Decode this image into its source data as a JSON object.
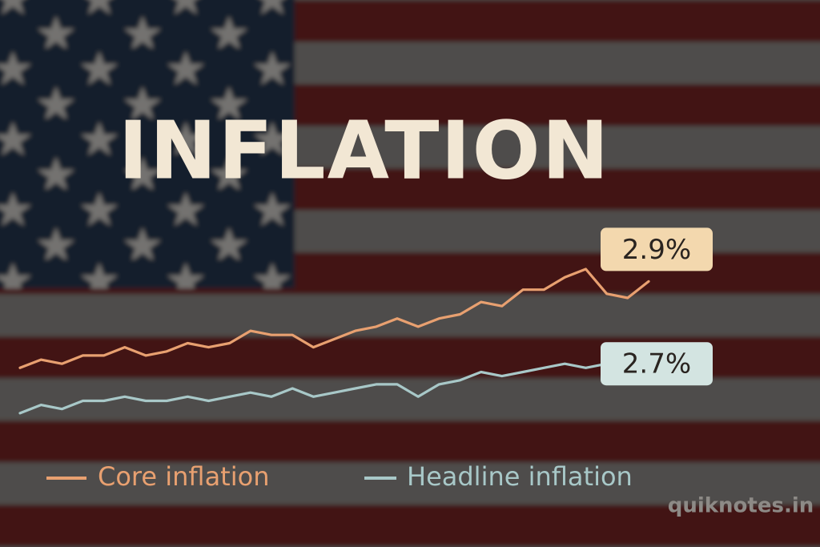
{
  "chart_data": {
    "type": "line",
    "title": "INFLATION",
    "categories": [
      null,
      null,
      null,
      null,
      null,
      null,
      null,
      null,
      null,
      null,
      null,
      null,
      null,
      null,
      null,
      null,
      null,
      null,
      null,
      null,
      null,
      null,
      null,
      null,
      null,
      null,
      null,
      null,
      null,
      null,
      null
    ],
    "ylim": [
      2.5,
      3.0
    ],
    "series": [
      {
        "name": "Core inflation",
        "color": "#e8a070",
        "values": [
          2.69,
          2.71,
          2.7,
          2.72,
          2.72,
          2.74,
          2.72,
          2.73,
          2.75,
          2.74,
          2.75,
          2.78,
          2.77,
          2.77,
          2.74,
          2.76,
          2.78,
          2.79,
          2.81,
          2.79,
          2.81,
          2.82,
          2.85,
          2.84,
          2.88,
          2.88,
          2.91,
          2.93,
          2.87,
          2.86,
          2.9
        ],
        "value_labels": [
          null,
          null,
          null,
          null,
          null,
          null,
          null,
          null,
          null,
          null,
          null,
          null,
          null,
          null,
          null,
          null,
          null,
          null,
          null,
          null,
          null,
          null,
          null,
          null,
          null,
          null,
          null,
          null,
          null,
          null,
          "2.9%"
        ]
      },
      {
        "name": "Headline inflation",
        "color": "#a8c8c8",
        "values": [
          2.58,
          2.6,
          2.59,
          2.61,
          2.61,
          2.62,
          2.61,
          2.61,
          2.62,
          2.61,
          2.62,
          2.63,
          2.62,
          2.64,
          2.62,
          2.63,
          2.64,
          2.65,
          2.65,
          2.62,
          2.65,
          2.66,
          2.68,
          2.67,
          2.68,
          2.69,
          2.7,
          2.69,
          2.7,
          null,
          null
        ],
        "value_labels": [
          null,
          null,
          null,
          null,
          null,
          null,
          null,
          null,
          null,
          null,
          null,
          null,
          null,
          null,
          null,
          null,
          null,
          null,
          null,
          null,
          null,
          null,
          null,
          null,
          null,
          null,
          null,
          null,
          "2.7%",
          null,
          null
        ]
      }
    ],
    "watermark": "quiknotes.in"
  }
}
